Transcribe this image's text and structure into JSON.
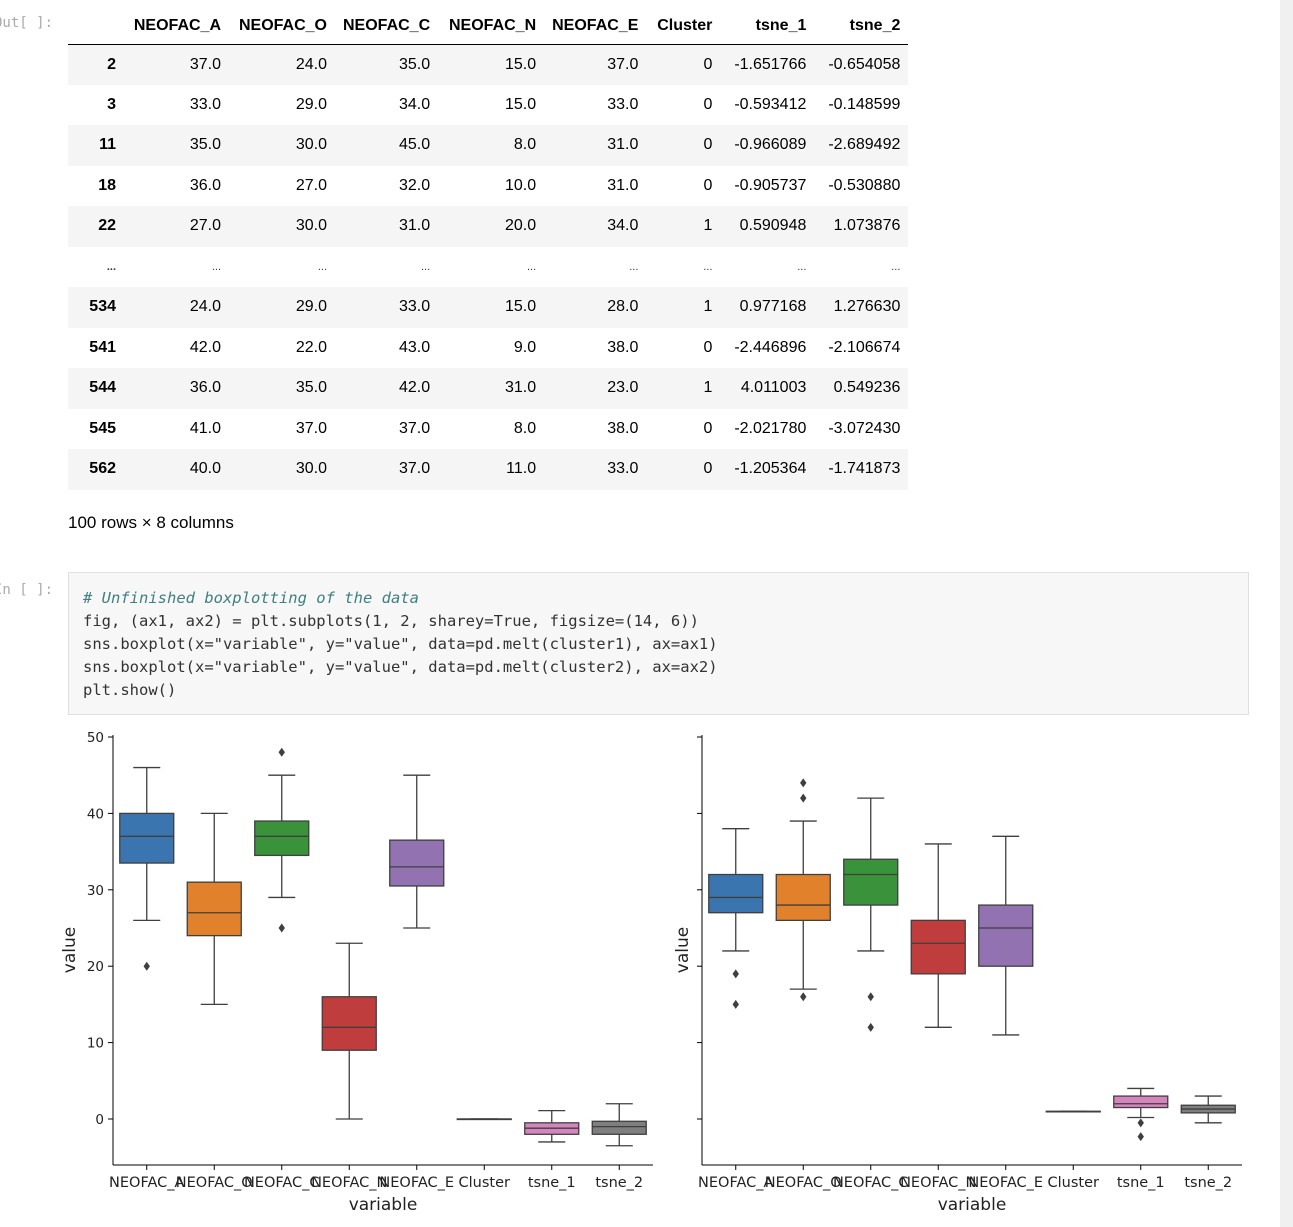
{
  "output_prompt": "Out[ ]:",
  "input_prompt": "In [ ]:",
  "table": {
    "columns": [
      "NEOFAC_A",
      "NEOFAC_O",
      "NEOFAC_C",
      "NEOFAC_N",
      "NEOFAC_E",
      "Cluster",
      "tsne_1",
      "tsne_2"
    ],
    "rows": [
      {
        "index": "2",
        "cells": [
          "37.0",
          "24.0",
          "35.0",
          "15.0",
          "37.0",
          "0",
          "-1.651766",
          "-0.654058"
        ]
      },
      {
        "index": "3",
        "cells": [
          "33.0",
          "29.0",
          "34.0",
          "15.0",
          "33.0",
          "0",
          "-0.593412",
          "-0.148599"
        ]
      },
      {
        "index": "11",
        "cells": [
          "35.0",
          "30.0",
          "45.0",
          "8.0",
          "31.0",
          "0",
          "-0.966089",
          "-2.689492"
        ]
      },
      {
        "index": "18",
        "cells": [
          "36.0",
          "27.0",
          "32.0",
          "10.0",
          "31.0",
          "0",
          "-0.905737",
          "-0.530880"
        ]
      },
      {
        "index": "22",
        "cells": [
          "27.0",
          "30.0",
          "31.0",
          "20.0",
          "34.0",
          "1",
          "0.590948",
          "1.073876"
        ]
      },
      {
        "index": "...",
        "cells": [
          "...",
          "...",
          "...",
          "...",
          "...",
          "...",
          "...",
          "..."
        ]
      },
      {
        "index": "534",
        "cells": [
          "24.0",
          "29.0",
          "33.0",
          "15.0",
          "28.0",
          "1",
          "0.977168",
          "1.276630"
        ]
      },
      {
        "index": "541",
        "cells": [
          "42.0",
          "22.0",
          "43.0",
          "9.0",
          "38.0",
          "0",
          "-2.446896",
          "-2.106674"
        ]
      },
      {
        "index": "544",
        "cells": [
          "36.0",
          "35.0",
          "42.0",
          "31.0",
          "23.0",
          "1",
          "4.011003",
          "0.549236"
        ]
      },
      {
        "index": "545",
        "cells": [
          "41.0",
          "37.0",
          "37.0",
          "8.0",
          "38.0",
          "0",
          "-2.021780",
          "-3.072430"
        ]
      },
      {
        "index": "562",
        "cells": [
          "40.0",
          "30.0",
          "37.0",
          "11.0",
          "33.0",
          "0",
          "-1.205364",
          "-1.741873"
        ]
      }
    ],
    "shape_text": "100 rows × 8 columns"
  },
  "code": {
    "line1": "# Unfinished boxplotting of the data",
    "line2": "fig, (ax1, ax2) = plt.subplots(1, 2, sharey=True, figsize=(14, 6))",
    "line3": "sns.boxplot(x=\"variable\", y=\"value\", data=pd.melt(cluster1), ax=ax1)",
    "line4": "sns.boxplot(x=\"variable\", y=\"value\", data=pd.melt(cluster2), ax=ax2)",
    "line5": "plt.show()"
  },
  "chart_data": [
    {
      "type": "box",
      "xlabel": "variable",
      "ylabel": "value",
      "ylim": [
        -6,
        50
      ],
      "yticks": [
        0,
        10,
        20,
        30,
        40,
        50
      ],
      "categories": [
        "NEOFAC_A",
        "NEOFAC_O",
        "NEOFAC_C",
        "NEOFAC_N",
        "NEOFAC_E",
        "Cluster",
        "tsne_1",
        "tsne_2"
      ],
      "colors": [
        "#3a75b0",
        "#e1812c",
        "#3a923a",
        "#c03d3e",
        "#9372b2",
        "#845b53",
        "#d684bd",
        "#7f7f7f"
      ],
      "boxes": [
        {
          "min": 26,
          "q1": 33.5,
          "median": 37,
          "q3": 40,
          "max": 46,
          "outliers": [
            20
          ]
        },
        {
          "min": 15,
          "q1": 24,
          "median": 27,
          "q3": 31,
          "max": 40,
          "outliers": []
        },
        {
          "min": 29,
          "q1": 34.5,
          "median": 37,
          "q3": 39,
          "max": 45,
          "outliers": [
            48,
            25
          ]
        },
        {
          "min": 0,
          "q1": 9,
          "median": 12,
          "q3": 16,
          "max": 23,
          "outliers": []
        },
        {
          "min": 25,
          "q1": 30.5,
          "median": 33,
          "q3": 36.5,
          "max": 45,
          "outliers": []
        },
        {
          "min": 0,
          "q1": 0,
          "median": 0,
          "q3": 0,
          "max": 0,
          "outliers": []
        },
        {
          "min": -3,
          "q1": -2,
          "median": -1.2,
          "q3": -0.5,
          "max": 1.1,
          "outliers": []
        },
        {
          "min": -3.5,
          "q1": -2,
          "median": -1,
          "q3": -0.3,
          "max": 2,
          "outliers": []
        }
      ]
    },
    {
      "type": "box",
      "xlabel": "variable",
      "ylabel": "value",
      "ylim": [
        -6,
        50
      ],
      "categories": [
        "NEOFAC_A",
        "NEOFAC_O",
        "NEOFAC_C",
        "NEOFAC_N",
        "NEOFAC_E",
        "Cluster",
        "tsne_1",
        "tsne_2"
      ],
      "colors": [
        "#3a75b0",
        "#e1812c",
        "#3a923a",
        "#c03d3e",
        "#9372b2",
        "#845b53",
        "#d684bd",
        "#7f7f7f"
      ],
      "boxes": [
        {
          "min": 22,
          "q1": 27,
          "median": 29,
          "q3": 32,
          "max": 38,
          "outliers": [
            19,
            15
          ]
        },
        {
          "min": 17,
          "q1": 26,
          "median": 28,
          "q3": 32,
          "max": 39,
          "outliers": [
            44,
            42,
            16
          ]
        },
        {
          "min": 22,
          "q1": 28,
          "median": 32,
          "q3": 34,
          "max": 42,
          "outliers": [
            16,
            12
          ]
        },
        {
          "min": 12,
          "q1": 19,
          "median": 23,
          "q3": 26,
          "max": 36,
          "outliers": []
        },
        {
          "min": 11,
          "q1": 20,
          "median": 25,
          "q3": 28,
          "max": 37,
          "outliers": []
        },
        {
          "min": 1,
          "q1": 1,
          "median": 1,
          "q3": 1,
          "max": 1,
          "outliers": []
        },
        {
          "min": 0.2,
          "q1": 1.5,
          "median": 2,
          "q3": 3,
          "max": 4,
          "outliers": [
            -0.5,
            -2.3
          ]
        },
        {
          "min": -0.5,
          "q1": 0.8,
          "median": 1.3,
          "q3": 1.8,
          "max": 3,
          "outliers": []
        }
      ]
    }
  ]
}
